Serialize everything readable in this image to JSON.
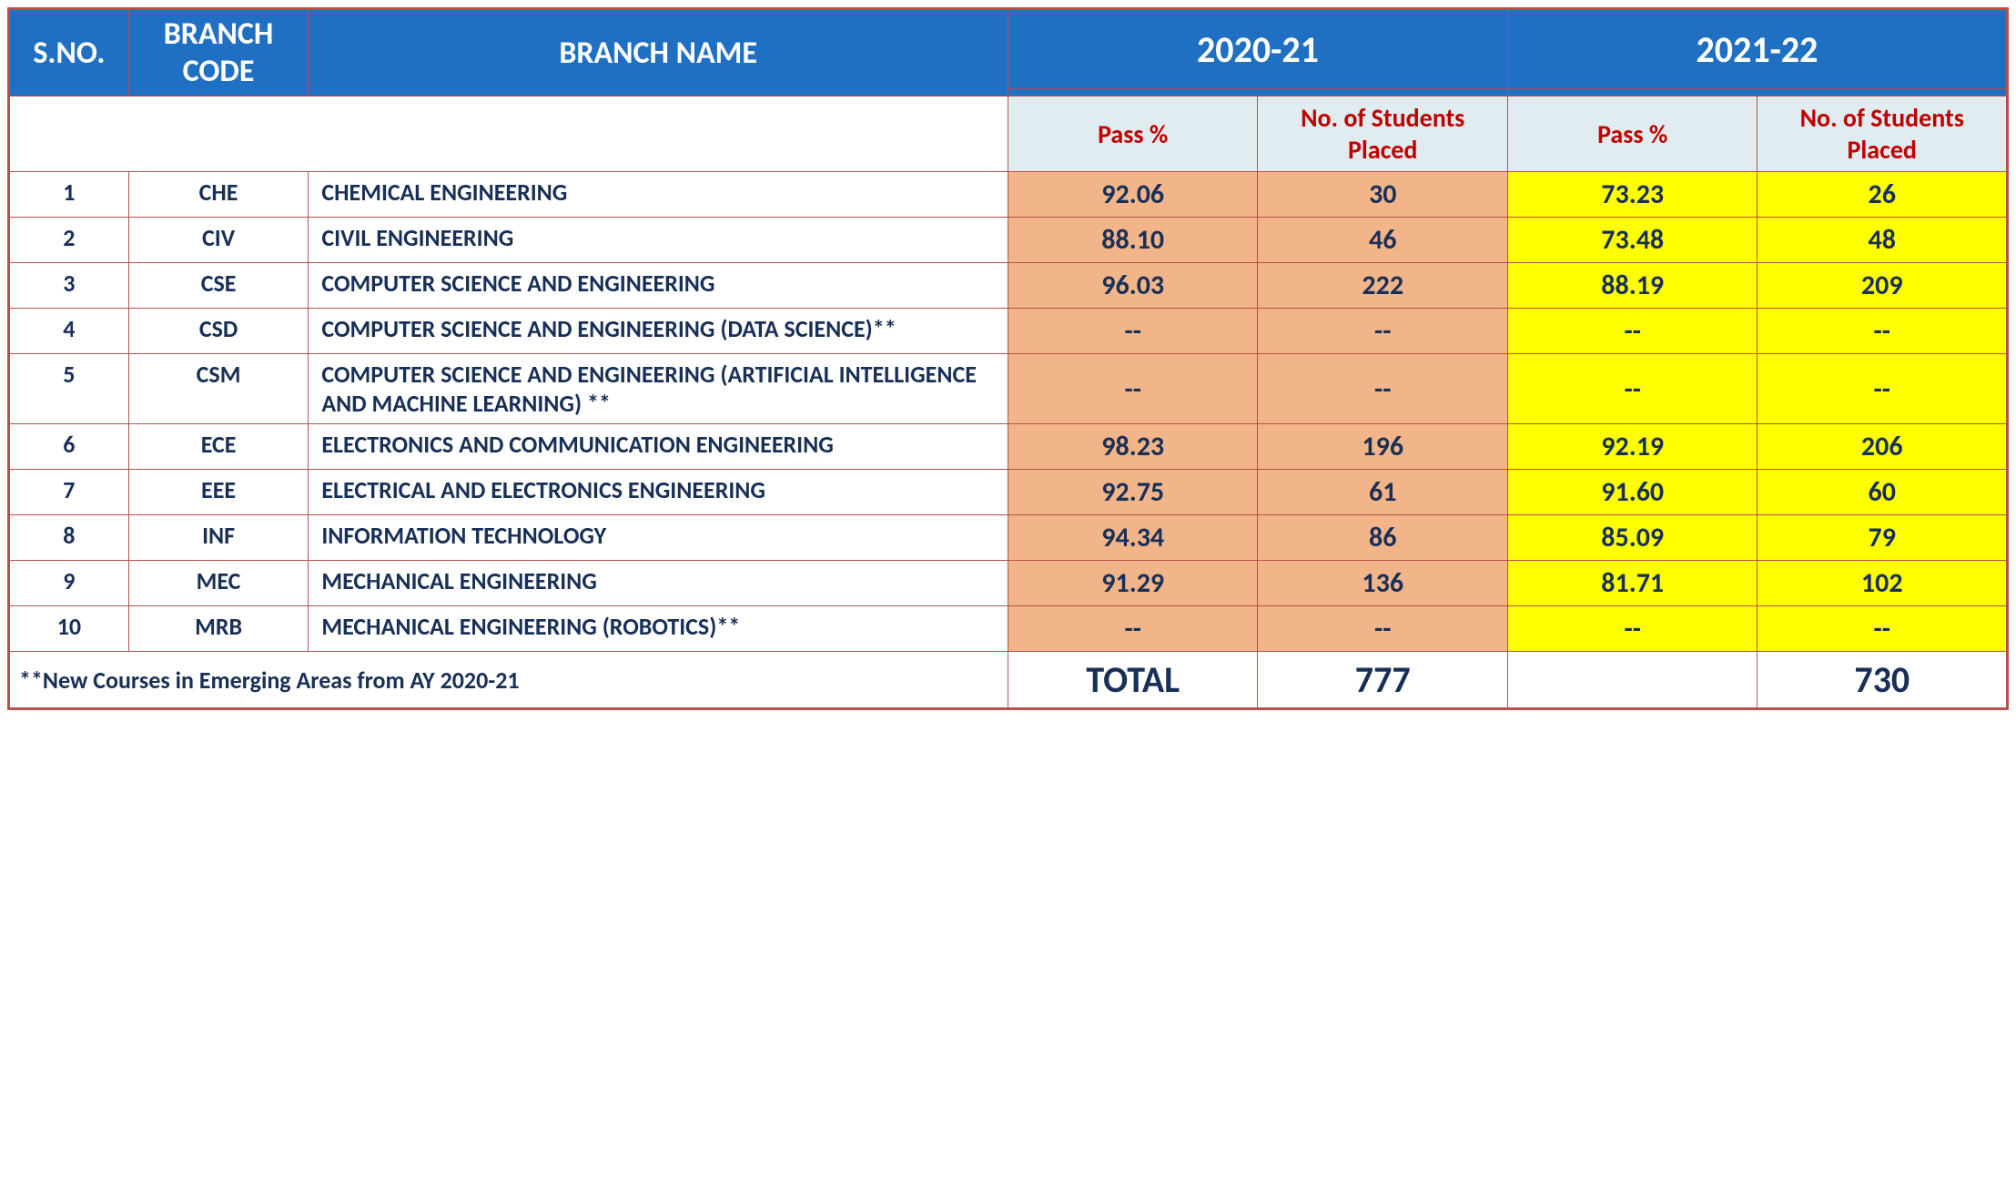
{
  "header": {
    "sno": "S.NO.",
    "branch_code": "BRANCH CODE",
    "branch_name": "BRANCH NAME",
    "year_a": "2020-21",
    "year_b": "2021-22"
  },
  "subheader": {
    "pass_a": "Pass %",
    "placed_a": "No. of Students Placed",
    "pass_b": "Pass %",
    "placed_b": "No. of Students Placed"
  },
  "rows": [
    {
      "sno": "1",
      "code": "CHE",
      "name": "CHEMICAL ENGINEERING",
      "pa": "92.06",
      "sa": "30",
      "pb": "73.23",
      "sb": "26"
    },
    {
      "sno": "2",
      "code": "CIV",
      "name": "CIVIL ENGINEERING",
      "pa": "88.10",
      "sa": "46",
      "pb": "73.48",
      "sb": "48"
    },
    {
      "sno": "3",
      "code": "CSE",
      "name": "COMPUTER SCIENCE AND ENGINEERING",
      "pa": "96.03",
      "sa": "222",
      "pb": "88.19",
      "sb": "209"
    },
    {
      "sno": "4",
      "code": "CSD",
      "name": "COMPUTER SCIENCE AND ENGINEERING (DATA SCIENCE)**",
      "pa": "--",
      "sa": "--",
      "pb": "--",
      "sb": "--"
    },
    {
      "sno": "5",
      "code": "CSM",
      "name": "COMPUTER SCIENCE AND ENGINEERING (ARTIFICIAL INTELLIGENCE AND MACHINE LEARNING) **",
      "pa": "--",
      "sa": "--",
      "pb": "--",
      "sb": "--"
    },
    {
      "sno": "6",
      "code": "ECE",
      "name": "ELECTRONICS AND COMMUNICATION ENGINEERING",
      "pa": "98.23",
      "sa": "196",
      "pb": "92.19",
      "sb": "206"
    },
    {
      "sno": "7",
      "code": "EEE",
      "name": "ELECTRICAL AND ELECTRONICS ENGINEERING",
      "pa": "92.75",
      "sa": "61",
      "pb": "91.60",
      "sb": "60"
    },
    {
      "sno": "8",
      "code": "INF",
      "name": "INFORMATION TECHNOLOGY",
      "pa": "94.34",
      "sa": "86",
      "pb": "85.09",
      "sb": "79"
    },
    {
      "sno": "9",
      "code": "MEC",
      "name": "MECHANICAL ENGINEERING",
      "pa": "91.29",
      "sa": "136",
      "pb": "81.71",
      "sb": "102"
    },
    {
      "sno": "10",
      "code": "MRB",
      "name": "MECHANICAL ENGINEERING (ROBOTICS)**",
      "pa": "--",
      "sa": "--",
      "pb": "--",
      "sb": "--"
    }
  ],
  "footer": {
    "note": "**New Courses in Emerging Areas from AY 2020-21",
    "total_label": "TOTAL",
    "total_a": "777",
    "total_b": "730"
  },
  "colors": {
    "header_bg": "#1f6fc2",
    "header_fg": "#ffffff",
    "subheader_bg": "#e0ecf0",
    "subheader_fg": "#c00000",
    "year_a_bg": "#f2b58a",
    "year_b_bg": "#ffff00",
    "body_fg": "#182f57",
    "border": "#b8504a"
  }
}
